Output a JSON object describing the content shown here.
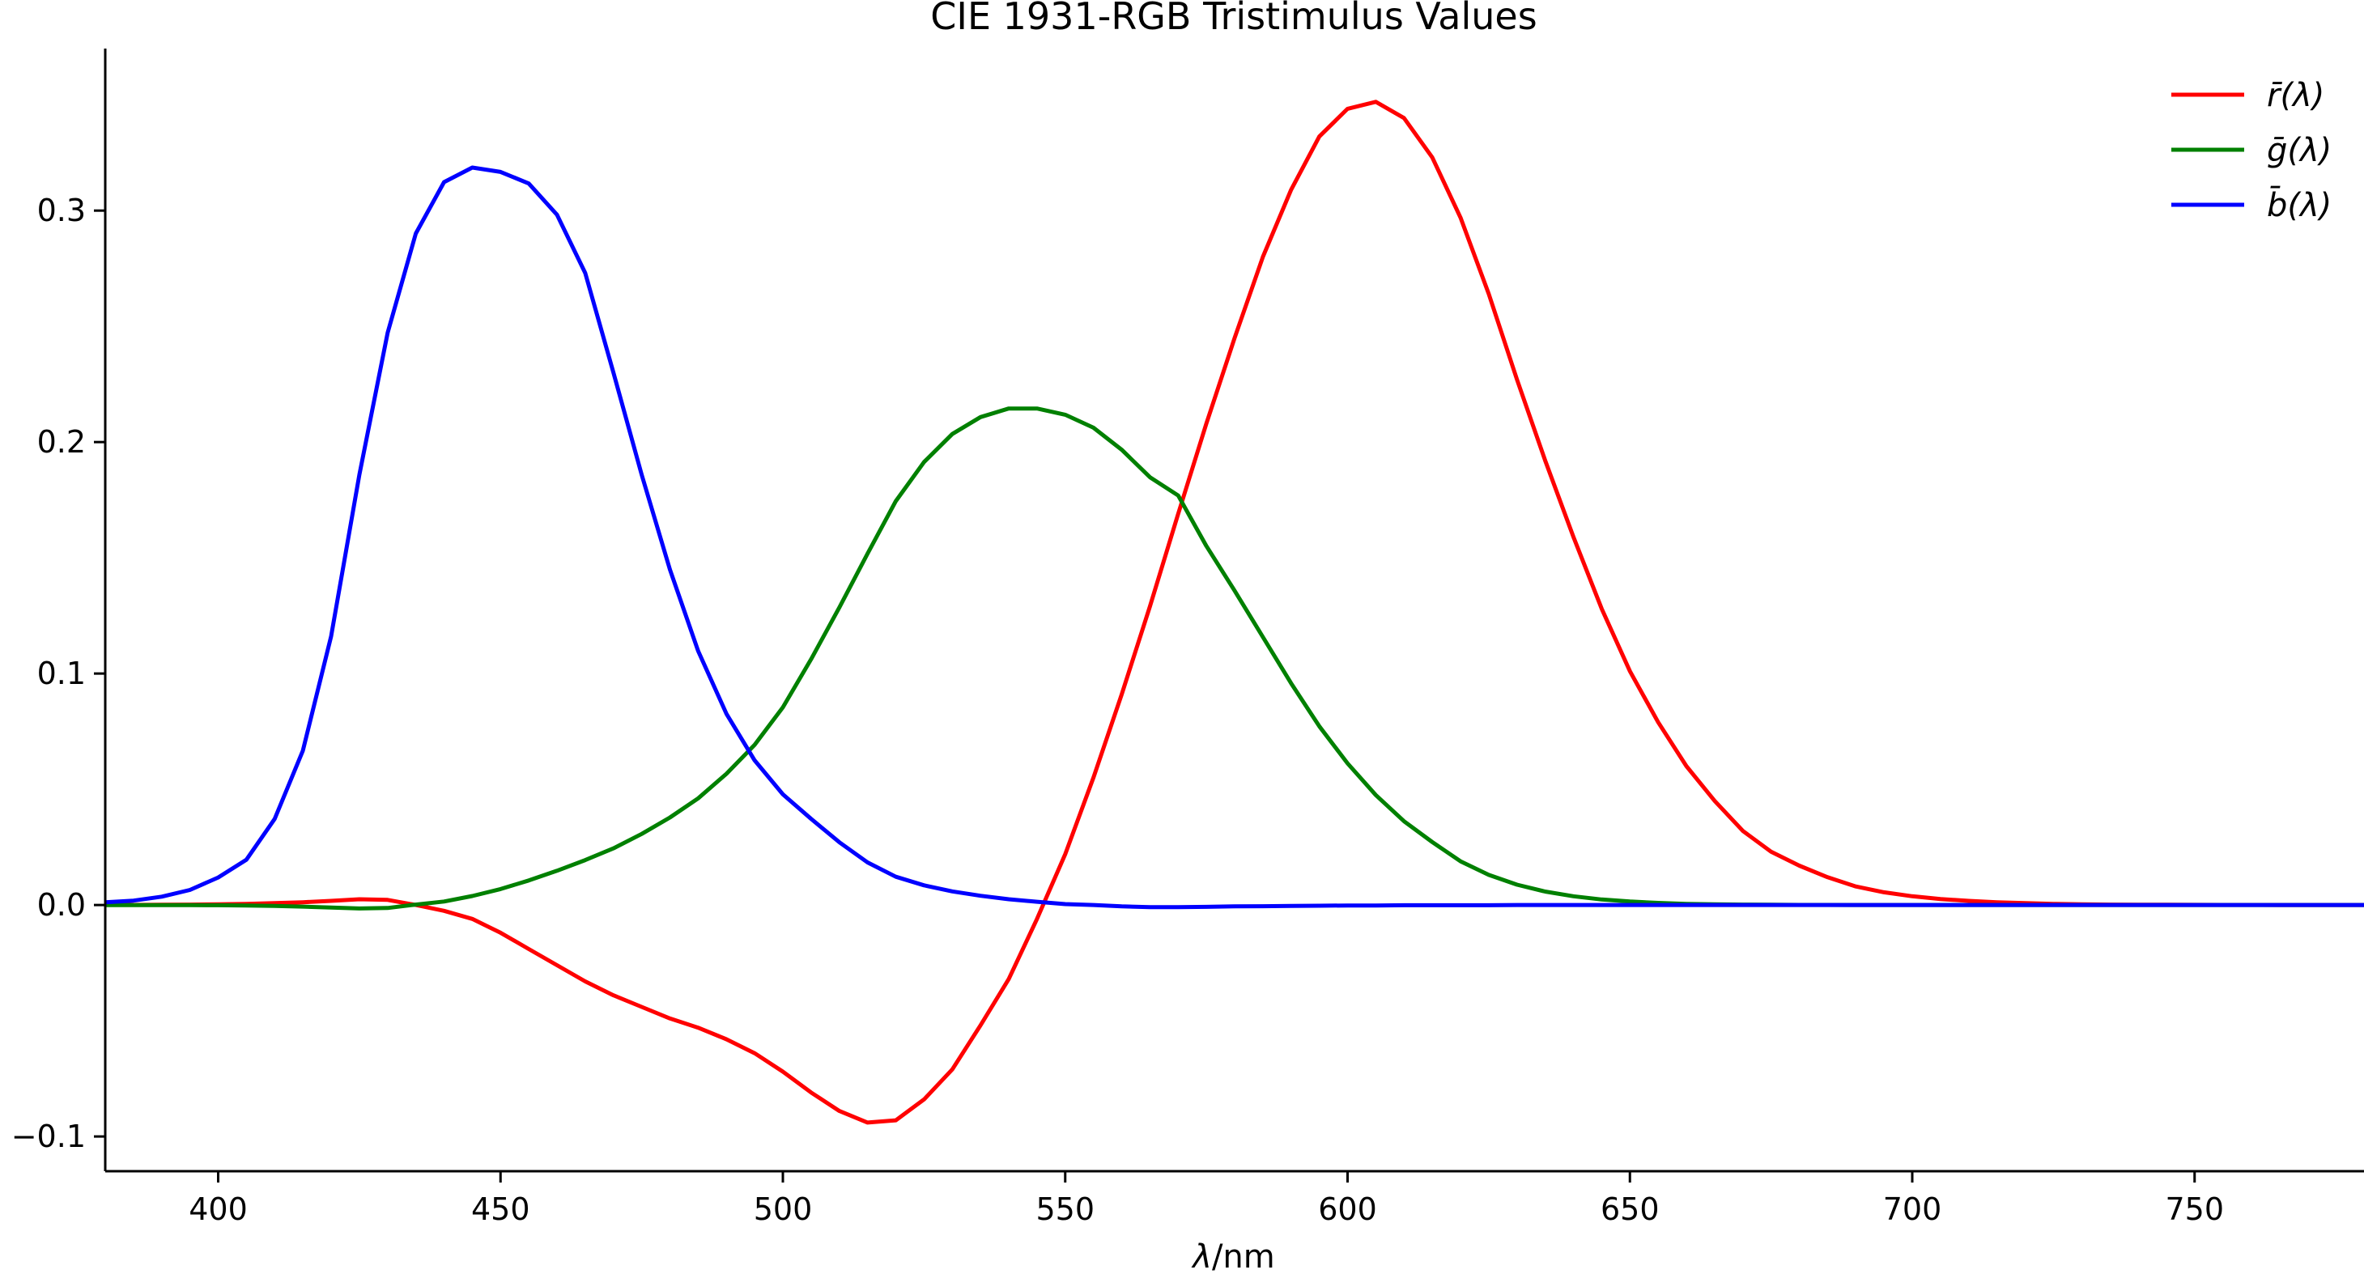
{
  "chart_data": {
    "type": "line",
    "title": "CIE 1931-RGB Tristimulus Values",
    "xlabel_var": "λ",
    "xlabel_unit": "/nm",
    "ylabel": "",
    "xlim": [
      380,
      780
    ],
    "ylim": [
      -0.115,
      0.37
    ],
    "xticks": [
      400,
      450,
      500,
      550,
      600,
      650,
      700,
      750
    ],
    "yticks": [
      -0.1,
      0.0,
      0.1,
      0.2,
      0.3
    ],
    "ytick_labels": [
      "−0.1",
      "0.0",
      "0.1",
      "0.2",
      "0.3"
    ],
    "grid": false,
    "legend_position": "top-right",
    "x": [
      380,
      385,
      390,
      395,
      400,
      405,
      410,
      415,
      420,
      425,
      430,
      435,
      440,
      445,
      450,
      455,
      460,
      465,
      470,
      475,
      480,
      485,
      490,
      495,
      500,
      505,
      510,
      515,
      520,
      525,
      530,
      535,
      540,
      545,
      550,
      555,
      560,
      565,
      570,
      575,
      580,
      585,
      590,
      595,
      600,
      605,
      610,
      615,
      620,
      625,
      630,
      635,
      640,
      645,
      650,
      655,
      660,
      665,
      670,
      675,
      680,
      685,
      690,
      695,
      700,
      705,
      710,
      715,
      720,
      725,
      730,
      735,
      740,
      745,
      750,
      755,
      760,
      765,
      770,
      775,
      780
    ],
    "series": [
      {
        "name": "r̄(λ)",
        "color": "#ff0000",
        "values": [
          3e-05,
          5e-05,
          0.0001,
          0.00017,
          0.0003,
          0.0005,
          0.0008,
          0.0012,
          0.0018,
          0.0025,
          0.0022,
          0.0,
          -0.0025,
          -0.006,
          -0.012,
          -0.019,
          -0.026,
          -0.033,
          -0.039,
          -0.044,
          -0.049,
          -0.053,
          -0.058,
          -0.064,
          -0.072,
          -0.081,
          -0.089,
          -0.094,
          -0.093,
          -0.084,
          -0.071,
          -0.052,
          -0.032,
          -0.006,
          0.022,
          0.055,
          0.091,
          0.129,
          0.169,
          0.208,
          0.245,
          0.28,
          0.309,
          0.332,
          0.344,
          0.347,
          0.34,
          0.323,
          0.297,
          0.264,
          0.227,
          0.192,
          0.159,
          0.128,
          0.101,
          0.079,
          0.06,
          0.045,
          0.032,
          0.023,
          0.017,
          0.012,
          0.008,
          0.0055,
          0.0038,
          0.0026,
          0.0018,
          0.0012,
          0.0008,
          0.0005,
          0.0003,
          0.0002,
          0.00015,
          0.0001,
          7e-05,
          5e-05,
          3e-05,
          2e-05,
          1e-05,
          1e-05,
          0.0
        ]
      },
      {
        "name": "ḡ(λ)",
        "color": "#008000",
        "values": [
          -1e-05,
          -2e-05,
          -4e-05,
          -7e-05,
          -0.0001,
          -0.0002,
          -0.0004,
          -0.0007,
          -0.0011,
          -0.0015,
          -0.0013,
          0.0002,
          0.0015,
          0.0039,
          0.0069,
          0.0106,
          0.0148,
          0.0194,
          0.0245,
          0.0307,
          0.0378,
          0.0461,
          0.0567,
          0.0692,
          0.0854,
          0.1062,
          0.1286,
          0.1518,
          0.1745,
          0.1914,
          0.2035,
          0.2108,
          0.2145,
          0.2145,
          0.2118,
          0.2062,
          0.1967,
          0.1848,
          0.1769,
          0.1551,
          0.1358,
          0.1158,
          0.0958,
          0.0772,
          0.0612,
          0.0475,
          0.0362,
          0.0272,
          0.0189,
          0.013,
          0.0088,
          0.0058,
          0.0038,
          0.0024,
          0.0015,
          0.0009,
          0.0005,
          0.0003,
          0.0002,
          0.0001,
          5e-05,
          3e-05,
          2e-05,
          1e-05,
          0.0,
          0.0,
          0.0,
          0.0,
          0.0,
          0.0,
          0.0,
          0.0,
          0.0,
          0.0,
          0.0,
          0.0,
          0.0,
          0.0,
          0.0,
          0.0,
          0.0
        ]
      },
      {
        "name": "b̄(λ)",
        "color": "#0000ff",
        "values": [
          0.0012,
          0.0019,
          0.0036,
          0.0065,
          0.0119,
          0.0196,
          0.0372,
          0.0667,
          0.1161,
          0.1859,
          0.2472,
          0.2901,
          0.3123,
          0.3186,
          0.3167,
          0.3117,
          0.2982,
          0.273,
          0.2299,
          0.1859,
          0.1449,
          0.1097,
          0.0826,
          0.0625,
          0.0478,
          0.0372,
          0.0271,
          0.0184,
          0.0122,
          0.0085,
          0.0059,
          0.004,
          0.0025,
          0.0014,
          0.0004,
          0.0,
          -0.0006,
          -0.0009,
          -0.0009,
          -0.0008,
          -0.0006,
          -0.0005,
          -0.0004,
          -0.0003,
          -0.0002,
          -0.0002,
          -0.0001,
          -0.0001,
          -0.0001,
          -0.0001,
          0.0,
          0.0,
          0.0,
          0.0,
          0.0,
          0.0,
          0.0,
          0.0,
          0.0,
          0.0,
          0.0,
          0.0,
          0.0,
          0.0,
          0.0,
          0.0,
          0.0,
          0.0,
          0.0,
          0.0,
          0.0,
          0.0,
          0.0,
          0.0,
          0.0,
          0.0,
          0.0,
          0.0,
          0.0,
          0.0,
          0.0
        ]
      }
    ]
  }
}
